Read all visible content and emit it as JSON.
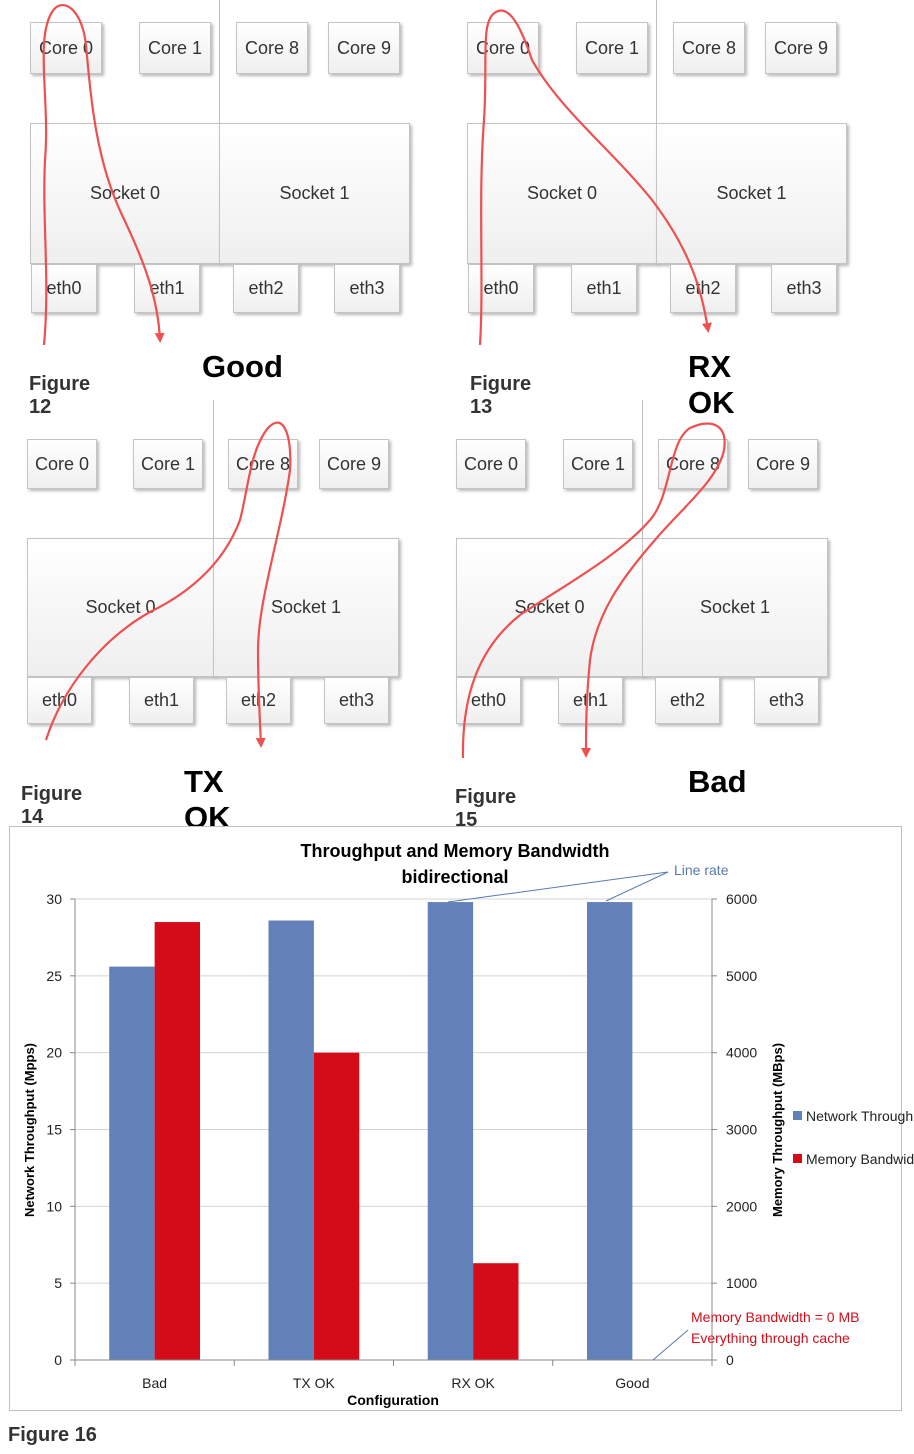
{
  "diagrams": [
    {
      "cores": [
        "Core 0",
        "Core 1",
        "Core 8",
        "Core 9"
      ],
      "sockets": [
        "Socket 0",
        "Socket 1"
      ],
      "eths": [
        "eth0",
        "eth1",
        "eth2",
        "eth3"
      ],
      "figure_label": "Figure 12",
      "verdict": "Good"
    },
    {
      "cores": [
        "Core 0",
        "Core 1",
        "Core 8",
        "Core 9"
      ],
      "sockets": [
        "Socket 0",
        "Socket 1"
      ],
      "eths": [
        "eth0",
        "eth1",
        "eth2",
        "eth3"
      ],
      "figure_label": "Figure 13",
      "verdict": "RX OK"
    },
    {
      "cores": [
        "Core 0",
        "Core 1",
        "Core 8",
        "Core 9"
      ],
      "sockets": [
        "Socket 0",
        "Socket 1"
      ],
      "eths": [
        "eth0",
        "eth1",
        "eth2",
        "eth3"
      ],
      "figure_label": "Figure 14",
      "verdict": "TX OK"
    },
    {
      "cores": [
        "Core 0",
        "Core 1",
        "Core 8",
        "Core 9"
      ],
      "sockets": [
        "Socket 0",
        "Socket 1"
      ],
      "eths": [
        "eth0",
        "eth1",
        "eth2",
        "eth3"
      ],
      "figure_label": "Figure 15",
      "verdict": "Bad"
    }
  ],
  "colors": {
    "arrow": "#ef4f4f",
    "network": "#6281b8",
    "memory": "#d40c1a",
    "annotation_line": "#5a78b0",
    "annotation_red": "#d40c1a"
  },
  "chart_data": {
    "type": "bar",
    "title": "Throughput and Memory Bandwidth",
    "subtitle": "bidirectional",
    "categories": [
      "Bad",
      "TX OK",
      "RX OK",
      "Good"
    ],
    "series": [
      {
        "name": "Network Throughput",
        "axis": "left",
        "values": [
          25.6,
          28.6,
          29.8,
          29.8
        ]
      },
      {
        "name": "Memory Bandwidth",
        "axis": "right",
        "values": [
          5700,
          4000,
          1260,
          0
        ]
      }
    ],
    "xlabel": "Configuration",
    "ylabel": "Network Throughput (Mpps)",
    "y2label": "Memory Throughput (MBps)",
    "ylim": [
      0,
      30
    ],
    "y2lim": [
      0,
      6000
    ],
    "yticks": [
      "0",
      "5",
      "10",
      "15",
      "20",
      "25",
      "30"
    ],
    "y2ticks": [
      "0",
      "1000",
      "2000",
      "3000",
      "4000",
      "5000",
      "6000"
    ],
    "legend_position": "right",
    "grid": true,
    "annotations": {
      "line_rate": "Line rate",
      "memory_zero_line1": "Memory Bandwidth = 0 MB",
      "memory_zero_line2": "Everything through cache"
    }
  },
  "figure16_label": "Figure 16"
}
